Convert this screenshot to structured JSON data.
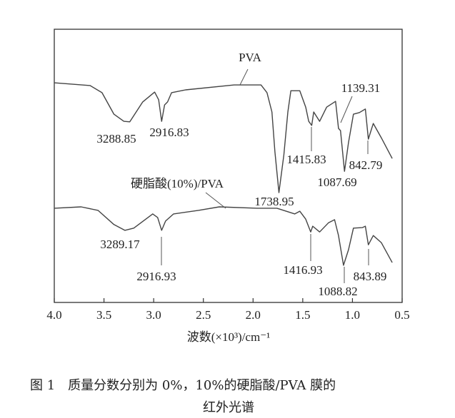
{
  "chart_data": {
    "type": "line",
    "title": "",
    "xlabel": "波数(×10³)/cm⁻¹",
    "ylabel": "",
    "xlim": [
      4.0,
      0.5
    ],
    "ylim": [
      0,
      100
    ],
    "xticks": [
      "4.0",
      "3.5",
      "3.0",
      "2.5",
      "2.0",
      "1.5",
      "1.0",
      "0.5"
    ],
    "xtick_values": [
      4.0,
      3.5,
      3.0,
      2.5,
      2.0,
      1.5,
      1.0,
      0.5
    ],
    "grid": false,
    "series": [
      {
        "name": "PVA",
        "x": [
          4.0,
          3.64,
          3.52,
          3.4,
          3.3,
          3.24,
          3.11,
          2.99,
          2.95,
          2.92,
          2.89,
          2.86,
          2.82,
          2.68,
          2.19,
          1.92,
          1.86,
          1.81,
          1.78,
          1.74,
          1.69,
          1.65,
          1.62,
          1.53,
          1.47,
          1.44,
          1.41,
          1.39,
          1.33,
          1.26,
          1.17,
          1.14,
          1.12,
          1.08,
          1.04,
          0.99,
          0.93,
          0.87,
          0.84,
          0.79,
          0.71,
          0.6
        ],
        "y": [
          80.4,
          79.4,
          76.8,
          68.9,
          66.3,
          66.1,
          73.4,
          77.0,
          74.2,
          66.3,
          72.3,
          73.4,
          76.8,
          77.8,
          79.6,
          79.6,
          76.8,
          69.7,
          55.1,
          40.2,
          54.0,
          69.7,
          77.5,
          77.5,
          71.5,
          66.3,
          64.8,
          69.7,
          66.3,
          71.5,
          73.6,
          63.7,
          62.9,
          48.0,
          58.5,
          68.9,
          69.5,
          70.8,
          59.8,
          65.5,
          60.3,
          52.7
        ]
      },
      {
        "name": "硬脂酸(10%)/PVA",
        "x": [
          4.0,
          3.73,
          3.56,
          3.4,
          3.29,
          3.2,
          3.01,
          2.96,
          2.92,
          2.88,
          2.8,
          2.55,
          2.34,
          1.96,
          1.76,
          1.58,
          1.53,
          1.47,
          1.42,
          1.4,
          1.33,
          1.24,
          1.18,
          1.14,
          1.09,
          1.04,
          0.99,
          0.9,
          0.87,
          0.84,
          0.79,
          0.71,
          0.6
        ],
        "y": [
          34.5,
          35.0,
          33.7,
          28.5,
          26.4,
          27.2,
          32.4,
          31.1,
          26.4,
          29.8,
          32.4,
          33.7,
          35.0,
          34.5,
          34.5,
          32.4,
          33.4,
          30.5,
          25.8,
          27.9,
          25.8,
          29.2,
          30.3,
          24.5,
          13.6,
          19.3,
          27.2,
          27.4,
          27.9,
          21.1,
          24.5,
          21.9,
          14.6
        ]
      }
    ],
    "annotations": {
      "pva_label": "PVA",
      "sa_label": "硬脂酸(10%)/PVA",
      "pva_peaks": [
        "3288.85",
        "2916.83",
        "1738.95",
        "1415.83",
        "1139.31",
        "1087.69",
        "842.79"
      ],
      "sa_peaks": [
        "3289.17",
        "2916.93",
        "1416.93",
        "1088.82",
        "843.89"
      ]
    }
  },
  "caption": {
    "line1": "图 1　质量分数分别为 0%，10%的硬脂酸/PVA 膜的",
    "line2": "红外光谱"
  }
}
